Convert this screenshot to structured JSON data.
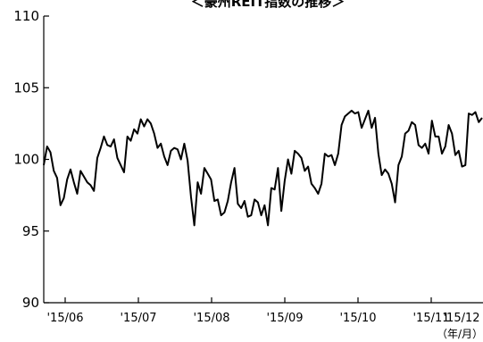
{
  "chart_data": {
    "type": "line",
    "title": "＜豪州REIT指数の推移＞",
    "x_unit": "（年/月）",
    "ylim": [
      90,
      110
    ],
    "y_ticks": [
      90,
      95,
      100,
      105,
      110
    ],
    "x_ticks": [
      "'15/06",
      "'15/07",
      "'15/08",
      "'15/09",
      "'15/10",
      "'15/11",
      "'15/12"
    ],
    "grid": false,
    "series": [
      {
        "color": "#000000",
        "values": [
          99.6,
          100.9,
          100.5,
          99.2,
          98.7,
          96.8,
          97.3,
          98.6,
          99.3,
          98.4,
          97.6,
          99.2,
          98.8,
          98.4,
          98.2,
          97.8,
          100.1,
          100.8,
          101.6,
          101.0,
          100.9,
          101.4,
          100.1,
          99.6,
          99.1,
          101.6,
          101.3,
          102.1,
          101.8,
          102.8,
          102.3,
          102.8,
          102.5,
          101.8,
          100.8,
          101.1,
          100.2,
          99.6,
          100.6,
          100.8,
          100.7,
          100.0,
          101.1,
          99.9,
          97.4,
          95.4,
          98.4,
          97.6,
          99.4,
          99.0,
          98.6,
          97.1,
          97.2,
          96.1,
          96.3,
          97.1,
          98.4,
          99.4,
          96.9,
          96.6,
          97.1,
          96.0,
          96.1,
          97.2,
          97.0,
          96.1,
          96.8,
          95.4,
          98.0,
          97.9,
          99.4,
          96.4,
          98.5,
          100.0,
          99.0,
          100.6,
          100.4,
          100.1,
          99.2,
          99.5,
          98.3,
          98.0,
          97.6,
          98.3,
          100.4,
          100.2,
          100.3,
          99.6,
          100.4,
          102.4,
          103.0,
          103.2,
          103.4,
          103.2,
          103.3,
          102.2,
          102.8,
          103.4,
          102.2,
          102.9,
          100.4,
          98.9,
          99.3,
          99.0,
          98.3,
          97.0,
          99.6,
          100.2,
          101.8,
          102.0,
          102.6,
          102.4,
          101.0,
          100.8,
          101.1,
          100.4,
          102.7,
          101.6,
          101.6,
          100.4,
          100.9,
          102.4,
          101.8,
          100.3,
          100.6,
          99.5,
          99.6,
          103.2,
          103.1,
          103.3,
          102.6,
          102.9
        ]
      }
    ]
  }
}
